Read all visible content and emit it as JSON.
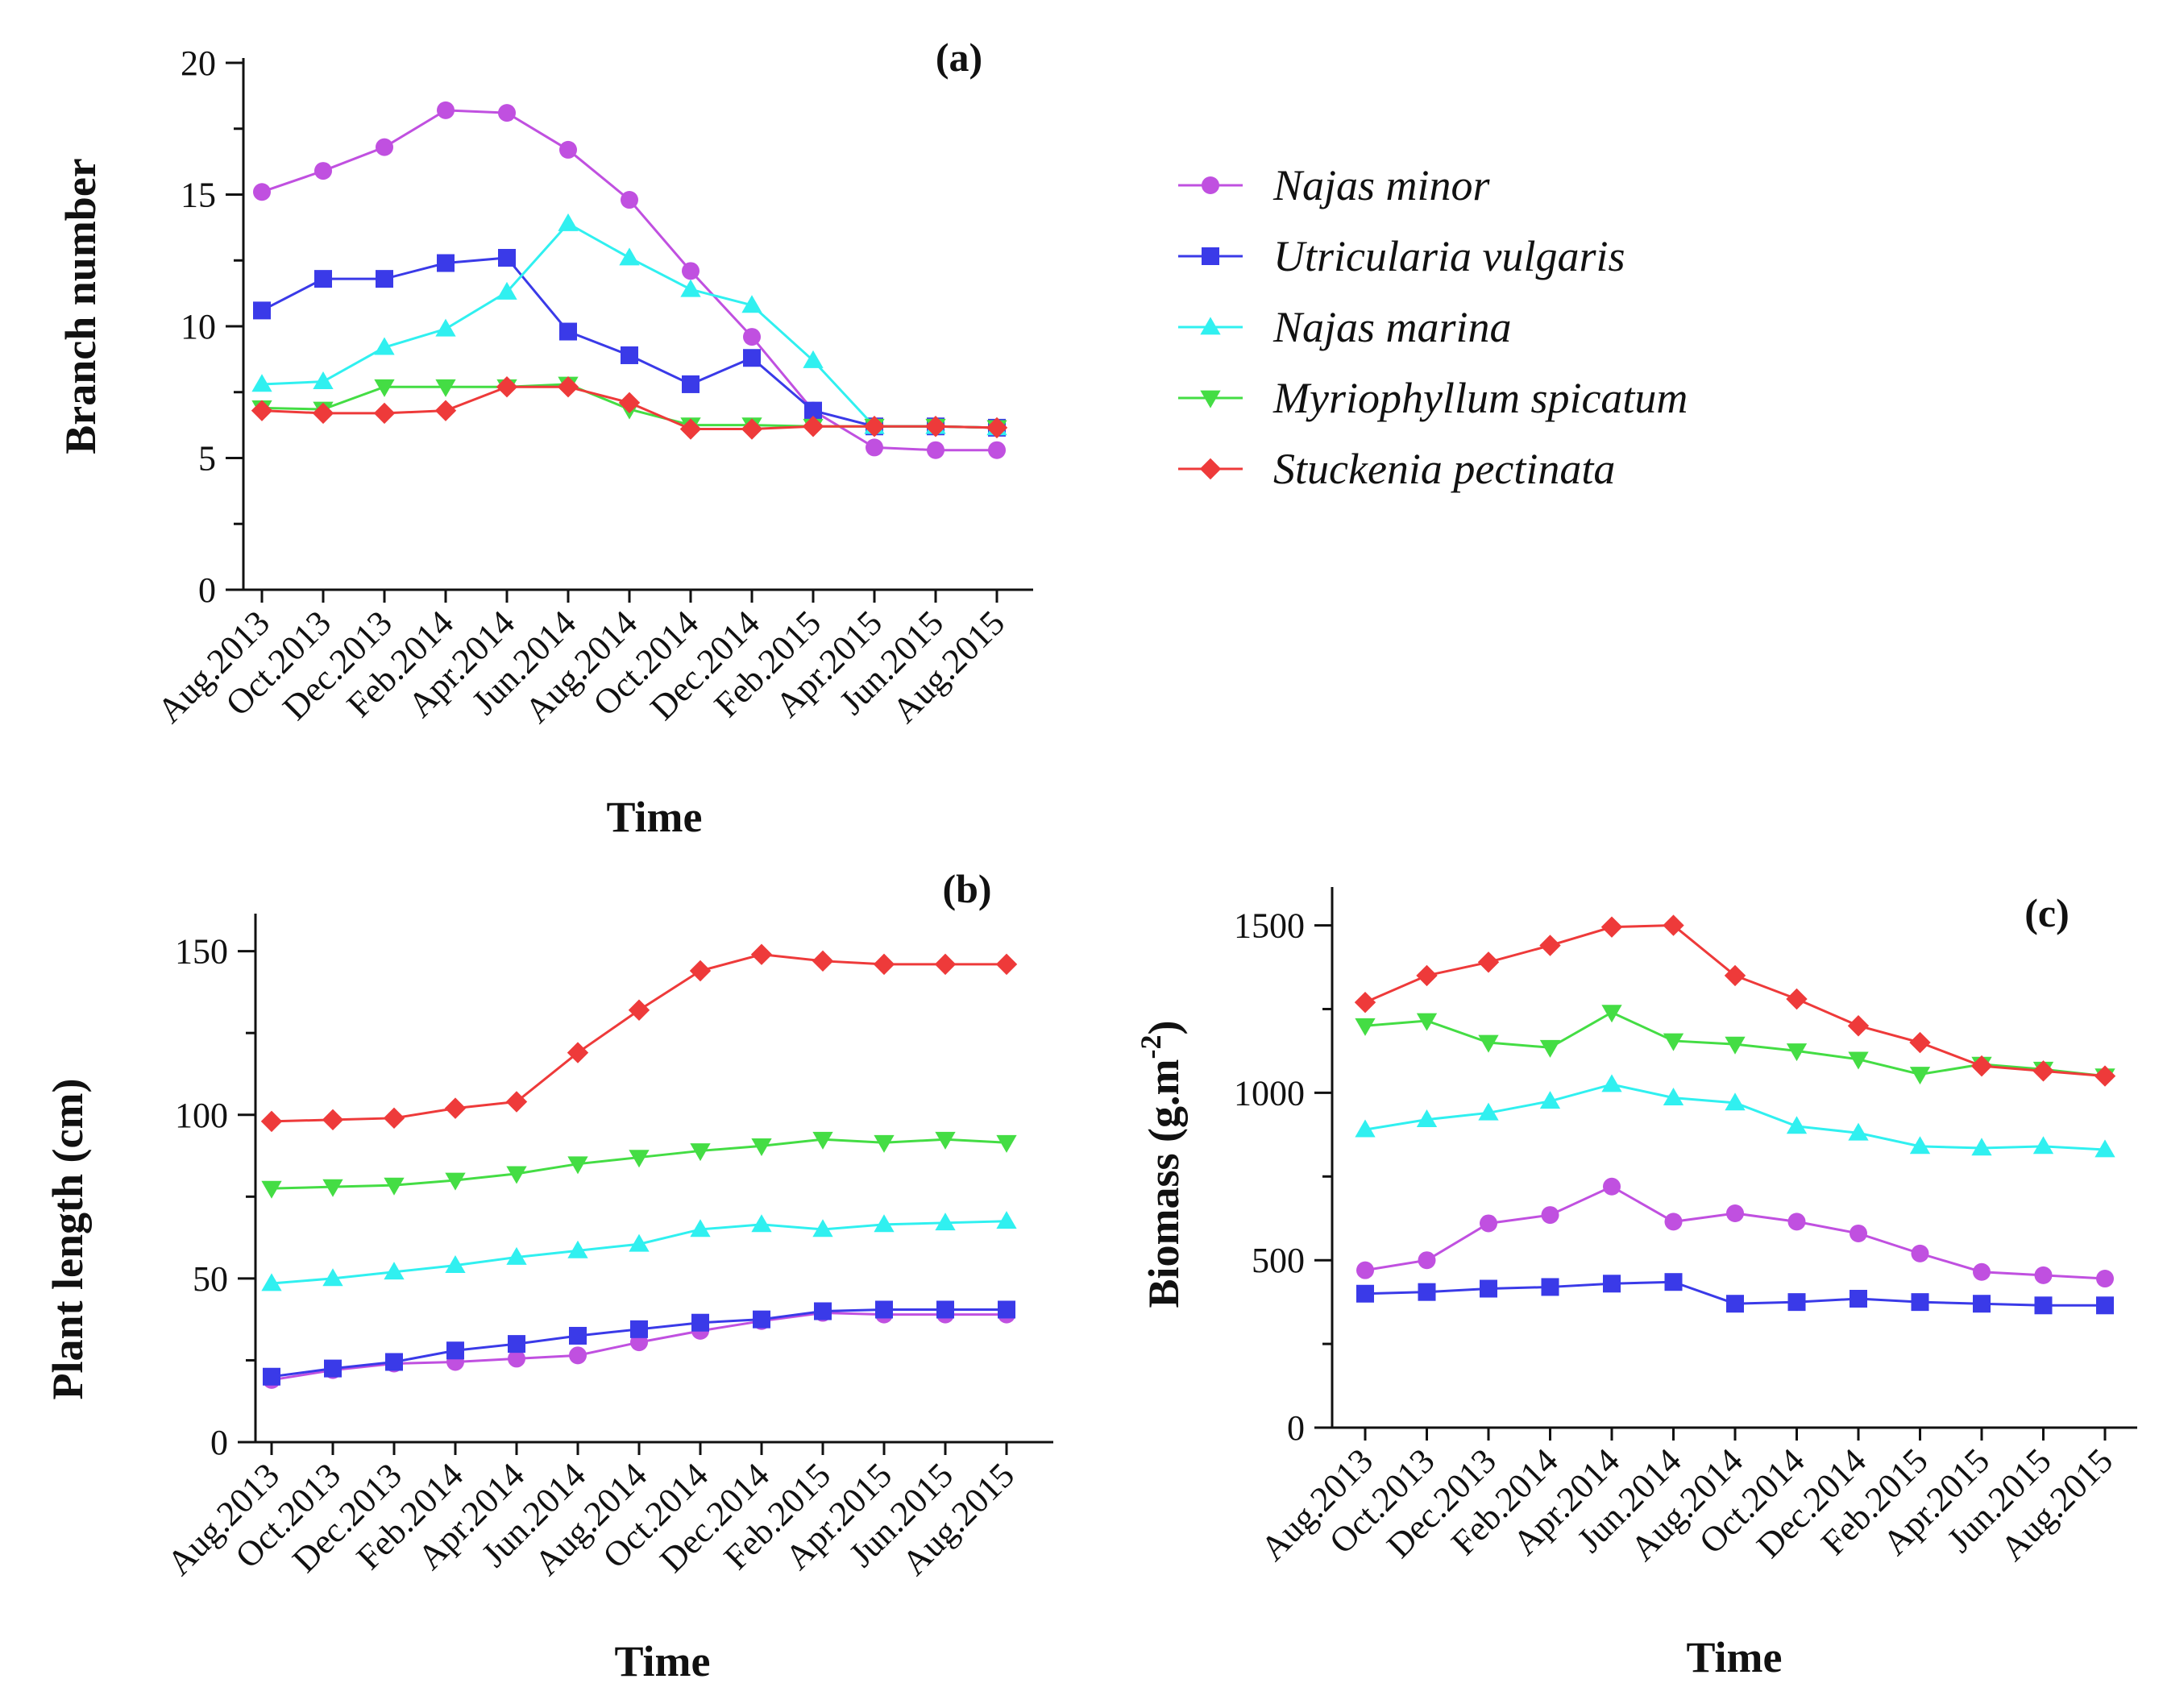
{
  "figure": {
    "months": [
      "Aug.2013",
      "Oct.2013",
      "Dec.2013",
      "Feb.2014",
      "Apr.2014",
      "Jun.2014",
      "Aug.2014",
      "Oct.2014",
      "Dec.2014",
      "Feb.2015",
      "Apr.2015",
      "Jun.2015",
      "Aug.2015"
    ]
  },
  "legend": [
    {
      "name": "Najas minor",
      "color": "#c050e0",
      "marker": "circle"
    },
    {
      "name": "Utricularia vulgaris",
      "color": "#3a3ae8",
      "marker": "square"
    },
    {
      "name": "Najas marina",
      "color": "#30f0f0",
      "marker": "triangle-up"
    },
    {
      "name": "Myriophyllum spicatum",
      "color": "#44dd44",
      "marker": "triangle-down"
    },
    {
      "name": "Stuckenia pectinata",
      "color": "#ee3a3a",
      "marker": "diamond"
    }
  ],
  "chart_data": [
    {
      "id": "a",
      "type": "line",
      "panel_label": "(a)",
      "xlabel": "Time",
      "ylabel": "Branch number",
      "ylim": [
        0,
        20
      ],
      "yticks": [
        0,
        5,
        10,
        15,
        20
      ],
      "categories": [
        "Aug.2013",
        "Oct.2013",
        "Dec.2013",
        "Feb.2014",
        "Apr.2014",
        "Jun.2014",
        "Aug.2014",
        "Oct.2014",
        "Dec.2014",
        "Feb.2015",
        "Apr.2015",
        "Jun.2015",
        "Aug.2015"
      ],
      "series": [
        {
          "name": "Najas minor",
          "values": [
            15.1,
            15.9,
            16.8,
            18.2,
            18.1,
            16.7,
            14.8,
            12.1,
            9.6,
            6.8,
            5.4,
            5.3,
            5.3
          ]
        },
        {
          "name": "Utricularia vulgaris",
          "values": [
            10.6,
            11.8,
            11.8,
            12.4,
            12.6,
            9.8,
            8.9,
            7.8,
            8.8,
            6.8,
            6.2,
            6.2,
            6.15
          ]
        },
        {
          "name": "Najas marina",
          "values": [
            7.8,
            7.9,
            9.2,
            9.9,
            11.3,
            13.9,
            12.6,
            11.4,
            10.8,
            8.7,
            6.2,
            6.2,
            6.15
          ]
        },
        {
          "name": "Myriophyllum spicatum",
          "values": [
            6.9,
            6.85,
            7.7,
            7.7,
            7.7,
            7.8,
            6.85,
            6.25,
            6.25,
            6.2,
            6.2,
            6.2,
            6.15
          ]
        },
        {
          "name": "Stuckenia pectinata",
          "values": [
            6.8,
            6.7,
            6.7,
            6.8,
            7.7,
            7.7,
            7.1,
            6.1,
            6.1,
            6.2,
            6.2,
            6.2,
            6.15
          ]
        }
      ]
    },
    {
      "id": "b",
      "type": "line",
      "panel_label": "(b)",
      "xlabel": "Time",
      "ylabel": "Plant length (cm)",
      "ylim": [
        0,
        160
      ],
      "yticks": [
        0,
        50,
        100,
        150
      ],
      "categories": [
        "Aug.2013",
        "Oct.2013",
        "Dec.2013",
        "Feb.2014",
        "Apr.2014",
        "Jun.2014",
        "Aug.2014",
        "Oct.2014",
        "Dec.2014",
        "Feb.2015",
        "Apr.2015",
        "Jun.2015",
        "Aug.2015"
      ],
      "series": [
        {
          "name": "Najas minor",
          "values": [
            19,
            22,
            24,
            24.5,
            25.5,
            26.5,
            30.5,
            34,
            37,
            39.5,
            39,
            39,
            39
          ]
        },
        {
          "name": "Utricularia vulgaris",
          "values": [
            20,
            22.5,
            24.5,
            28,
            30,
            32.5,
            34.5,
            36.5,
            37.5,
            40,
            40.5,
            40.5,
            40.5
          ]
        },
        {
          "name": "Najas marina",
          "values": [
            48.5,
            50,
            52,
            54,
            56.5,
            58.5,
            60.5,
            65,
            66.5,
            65,
            66.5,
            67,
            67.5
          ]
        },
        {
          "name": "Myriophyllum spicatum",
          "values": [
            77.5,
            78,
            78.5,
            80,
            82,
            85,
            87,
            89,
            90.5,
            92.5,
            91.5,
            92.5,
            91.5
          ]
        },
        {
          "name": "Stuckenia pectinata",
          "values": [
            98,
            98.5,
            99,
            102,
            104,
            119,
            132,
            144,
            149,
            147,
            146,
            146,
            146
          ]
        }
      ]
    },
    {
      "id": "c",
      "type": "line",
      "panel_label": "(c)",
      "xlabel": "Time",
      "ylabel": "Biomass (g.m",
      "ylabel_sup": "-2",
      "ylabel_end": ")",
      "ylim": [
        0,
        1600
      ],
      "yticks": [
        0,
        500,
        1000,
        1500
      ],
      "categories": [
        "Aug.2013",
        "Oct.2013",
        "Dec.2013",
        "Feb.2014",
        "Apr.2014",
        "Jun.2014",
        "Aug.2014",
        "Oct.2014",
        "Dec.2014",
        "Feb.2015",
        "Apr.2015",
        "Jun.2015",
        "Aug.2015"
      ],
      "series": [
        {
          "name": "Najas minor",
          "values": [
            470,
            500,
            610,
            635,
            720,
            615,
            640,
            615,
            580,
            520,
            465,
            455,
            445
          ]
        },
        {
          "name": "Utricularia vulgaris",
          "values": [
            400,
            405,
            415,
            420,
            430,
            435,
            370,
            375,
            385,
            375,
            370,
            365,
            365
          ]
        },
        {
          "name": "Najas marina",
          "values": [
            890,
            920,
            940,
            975,
            1025,
            985,
            970,
            900,
            880,
            840,
            835,
            840,
            830
          ]
        },
        {
          "name": "Myriophyllum spicatum",
          "values": [
            1200,
            1215,
            1150,
            1135,
            1240,
            1155,
            1145,
            1125,
            1100,
            1055,
            1085,
            1070,
            1050
          ]
        },
        {
          "name": "Stuckenia pectinata",
          "values": [
            1270,
            1350,
            1390,
            1440,
            1495,
            1500,
            1350,
            1280,
            1200,
            1150,
            1080,
            1065,
            1050
          ]
        }
      ]
    }
  ]
}
